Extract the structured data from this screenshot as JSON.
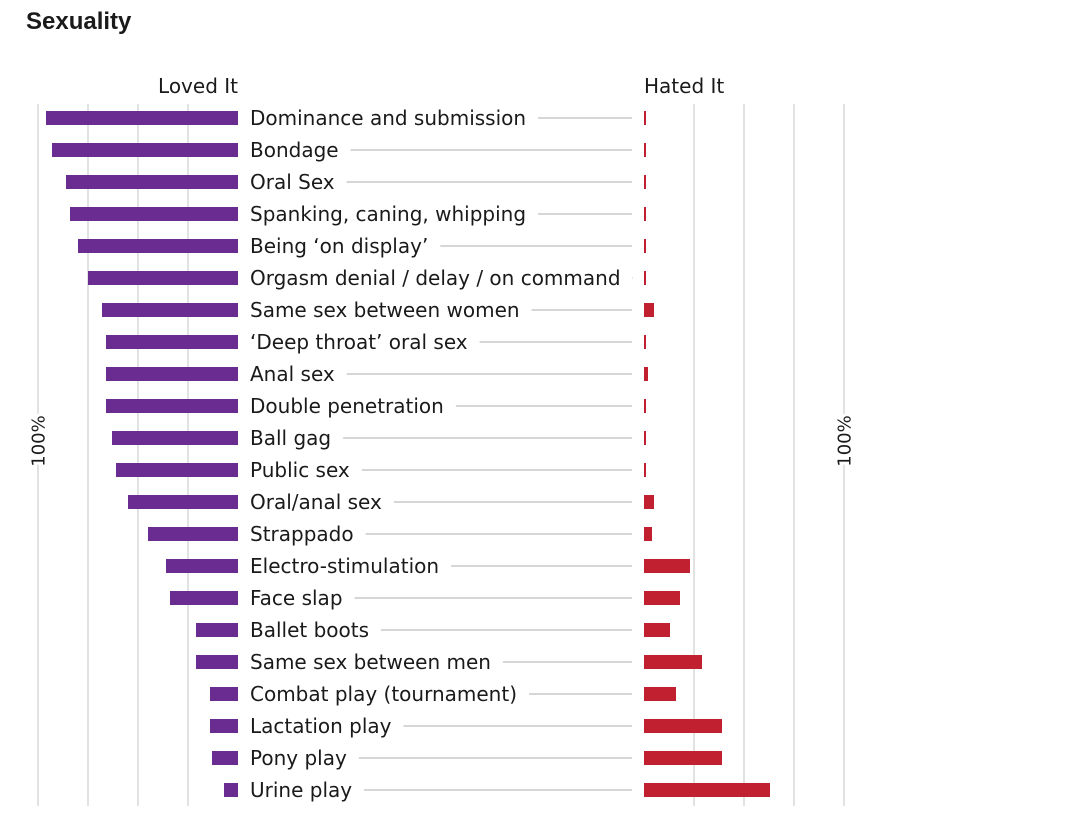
{
  "page": {
    "title": "Sexuality"
  },
  "colors": {
    "loved": "#6a2c91",
    "hated": "#c0202f",
    "grid": "#d9d9d9",
    "leader": "#c8c8c8",
    "text": "#1a1a1a"
  },
  "chart_data": {
    "type": "bar",
    "title": "Sexuality",
    "layout": "diverging-butterfly",
    "grid": true,
    "categories": [
      "Dominance and submission",
      "Bondage",
      "Oral Sex",
      "Spanking, caning, whipping",
      "Being ‘on display’",
      "Orgasm denial / delay / on command",
      "Same sex between women",
      "‘Deep throat’ oral sex",
      "Anal sex",
      "Double penetration",
      "Ball gag",
      "Public sex",
      "Oral/anal sex",
      "Strappado",
      "Electro-stimulation",
      "Face slap",
      "Ballet boots",
      "Same sex between men",
      "Combat play (tournament)",
      "Lactation play",
      "Pony play",
      "Urine play"
    ],
    "series": [
      {
        "name": "Loved It",
        "values": [
          96,
          93,
          86,
          84,
          80,
          75,
          68,
          66,
          66,
          66,
          63,
          61,
          55,
          45,
          36,
          34,
          21,
          21,
          14,
          14,
          13,
          7
        ]
      },
      {
        "name": "Hated It",
        "values": [
          0.5,
          0.5,
          0.5,
          0.5,
          0.5,
          0.5,
          5,
          0.5,
          2,
          0.5,
          0.5,
          0.5,
          5,
          4,
          23,
          18,
          13,
          29,
          16,
          39,
          39,
          63
        ]
      }
    ],
    "xlim": [
      0,
      100
    ],
    "axis_label_left": "100%",
    "axis_label_right": "100%"
  }
}
